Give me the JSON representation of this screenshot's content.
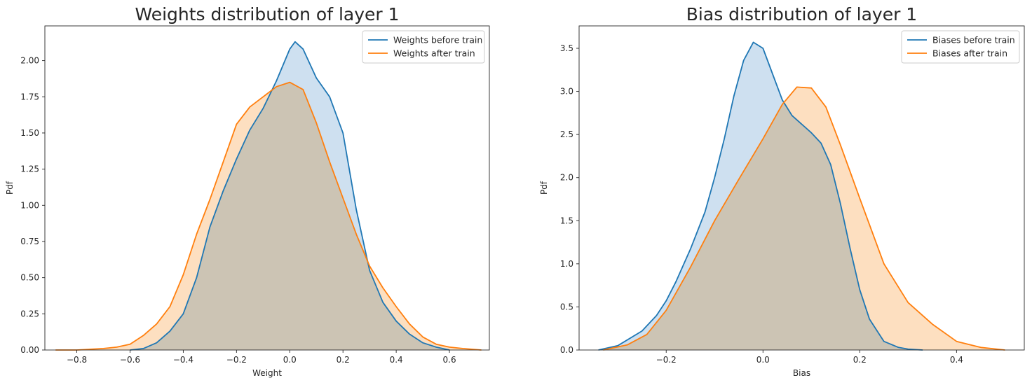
{
  "chart_data": [
    {
      "type": "area",
      "title": "Weights distribution of layer 1",
      "xlabel": "Weight",
      "ylabel": "Pdf",
      "xlim": [
        -0.92,
        0.75
      ],
      "ylim": [
        0,
        2.24
      ],
      "xticks": [
        -0.8,
        -0.6,
        -0.4,
        -0.2,
        0.0,
        0.2,
        0.4,
        0.6
      ],
      "xtick_labels": [
        "−0.8",
        "−0.6",
        "−0.4",
        "−0.2",
        "0.0",
        "0.2",
        "0.4",
        "0.6"
      ],
      "yticks": [
        0.0,
        0.25,
        0.5,
        0.75,
        1.0,
        1.25,
        1.5,
        1.75,
        2.0
      ],
      "ytick_labels": [
        "0.00",
        "0.25",
        "0.50",
        "0.75",
        "1.00",
        "1.25",
        "1.50",
        "1.75",
        "2.00"
      ],
      "legend": "top-right",
      "grid": false,
      "series": [
        {
          "name": "Weights before train",
          "color": "#1f77b4",
          "fill": "#c6dbed",
          "x": [
            -0.6,
            -0.55,
            -0.5,
            -0.45,
            -0.4,
            -0.35,
            -0.3,
            -0.25,
            -0.2,
            -0.15,
            -0.1,
            -0.05,
            0.0,
            0.02,
            0.05,
            0.1,
            0.15,
            0.2,
            0.25,
            0.3,
            0.35,
            0.4,
            0.45,
            0.5,
            0.55,
            0.6
          ],
          "y": [
            0.0,
            0.01,
            0.05,
            0.13,
            0.25,
            0.5,
            0.85,
            1.1,
            1.32,
            1.52,
            1.67,
            1.86,
            2.08,
            2.13,
            2.08,
            1.88,
            1.75,
            1.5,
            0.97,
            0.55,
            0.33,
            0.2,
            0.11,
            0.05,
            0.02,
            0.0
          ]
        },
        {
          "name": "Weights after train",
          "color": "#ff7f0e",
          "fill": "#fdd9b5",
          "x": [
            -0.88,
            -0.8,
            -0.7,
            -0.65,
            -0.6,
            -0.55,
            -0.5,
            -0.45,
            -0.4,
            -0.35,
            -0.3,
            -0.25,
            -0.2,
            -0.15,
            -0.1,
            -0.05,
            0.0,
            0.05,
            0.1,
            0.15,
            0.2,
            0.25,
            0.3,
            0.35,
            0.4,
            0.45,
            0.5,
            0.55,
            0.6,
            0.65,
            0.72
          ],
          "y": [
            0.0,
            0.0,
            0.01,
            0.02,
            0.04,
            0.1,
            0.18,
            0.3,
            0.52,
            0.8,
            1.04,
            1.3,
            1.56,
            1.68,
            1.75,
            1.82,
            1.85,
            1.8,
            1.57,
            1.3,
            1.05,
            0.8,
            0.58,
            0.43,
            0.3,
            0.18,
            0.09,
            0.04,
            0.02,
            0.01,
            0.0
          ]
        }
      ]
    },
    {
      "type": "area",
      "title": "Bias distribution of layer 1",
      "xlabel": "Bias",
      "ylabel": "Pdf",
      "xlim": [
        -0.38,
        0.54
      ],
      "ylim": [
        0,
        3.76
      ],
      "xticks": [
        -0.2,
        0.0,
        0.2,
        0.4
      ],
      "xtick_labels": [
        "−0.2",
        "0.0",
        "0.2",
        "0.4"
      ],
      "yticks": [
        0.0,
        0.5,
        1.0,
        1.5,
        2.0,
        2.5,
        3.0,
        3.5
      ],
      "ytick_labels": [
        "0.0",
        "0.5",
        "1.0",
        "1.5",
        "2.0",
        "2.5",
        "3.0",
        "3.5"
      ],
      "legend": "top-right",
      "grid": false,
      "series": [
        {
          "name": "Biases before train",
          "color": "#1f77b4",
          "fill": "#c6dbed",
          "x": [
            -0.34,
            -0.3,
            -0.25,
            -0.22,
            -0.2,
            -0.18,
            -0.15,
            -0.12,
            -0.1,
            -0.08,
            -0.06,
            -0.04,
            -0.02,
            0.0,
            0.02,
            0.04,
            0.06,
            0.08,
            0.1,
            0.12,
            0.14,
            0.16,
            0.18,
            0.2,
            0.22,
            0.25,
            0.28,
            0.3,
            0.33
          ],
          "y": [
            0.0,
            0.05,
            0.22,
            0.4,
            0.57,
            0.79,
            1.17,
            1.6,
            2.0,
            2.45,
            2.95,
            3.36,
            3.57,
            3.5,
            3.2,
            2.9,
            2.72,
            2.62,
            2.52,
            2.4,
            2.15,
            1.7,
            1.18,
            0.7,
            0.36,
            0.1,
            0.03,
            0.01,
            0.0
          ]
        },
        {
          "name": "Biases after train",
          "color": "#ff7f0e",
          "fill": "#fdd9b5",
          "x": [
            -0.33,
            -0.28,
            -0.24,
            -0.2,
            -0.15,
            -0.1,
            -0.05,
            0.0,
            0.04,
            0.07,
            0.1,
            0.13,
            0.16,
            0.2,
            0.25,
            0.3,
            0.35,
            0.4,
            0.45,
            0.5
          ],
          "y": [
            0.0,
            0.06,
            0.18,
            0.46,
            0.96,
            1.5,
            1.98,
            2.45,
            2.85,
            3.05,
            3.04,
            2.82,
            2.38,
            1.76,
            1.0,
            0.55,
            0.3,
            0.1,
            0.03,
            0.0
          ]
        }
      ]
    }
  ]
}
